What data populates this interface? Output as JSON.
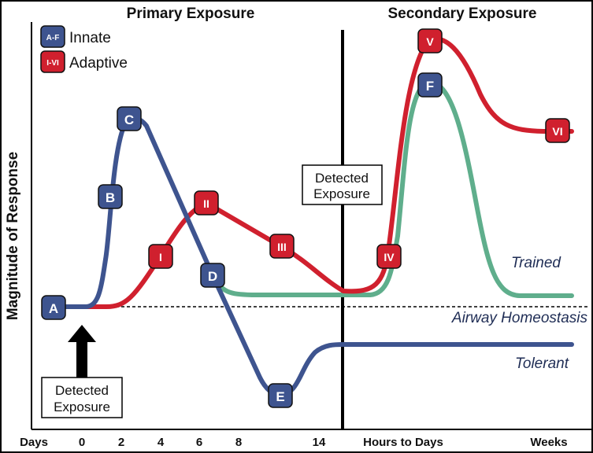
{
  "headers": {
    "primary": "Primary Exposure",
    "secondary": "Secondary Exposure"
  },
  "legend": {
    "innate": {
      "badge": "A-F",
      "label": "Innate",
      "color": "#3e548f"
    },
    "adaptive": {
      "badge": "I-VI",
      "label": "Adaptive",
      "color": "#d0202e"
    }
  },
  "y_axis_label": "Magnitude of Response",
  "x_axis": {
    "days_label": "Days",
    "ticks": [
      "0",
      "2",
      "4",
      "6",
      "8",
      "14"
    ],
    "hours_label": "Hours to Days",
    "weeks_label": "Weeks"
  },
  "annotations": {
    "detected_exposure_bottom_line1": "Detected",
    "detected_exposure_bottom_line2": "Exposure",
    "detected_exposure_middle_line1": "Detected",
    "detected_exposure_middle_line2": "Exposure",
    "airway_homeostasis": "Airway Homeostasis",
    "trained": "Trained",
    "tolerant": "Tolerant"
  },
  "markers": {
    "innate": [
      "A",
      "B",
      "C",
      "D",
      "E",
      "F"
    ],
    "adaptive": [
      "I",
      "II",
      "III",
      "IV",
      "V",
      "VI"
    ]
  },
  "colors": {
    "innate": "#3e548f",
    "adaptive": "#d0202e",
    "trained": "#5fae8c",
    "axis": "#000000"
  }
}
